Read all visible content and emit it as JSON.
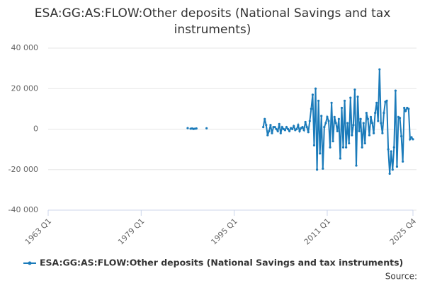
{
  "chart_data": {
    "type": "line",
    "title": "ESA:GG:AS:FLOW:Other deposits (National Savings and tax instruments)",
    "source": "Source:",
    "xlim": [
      "1963 Q1",
      "2025 Q4"
    ],
    "xticks": [
      "1963 Q1",
      "1979 Q1",
      "1995 Q1",
      "2011 Q1",
      "2025 Q4"
    ],
    "ylim": [
      -40000,
      40000
    ],
    "yticks": [
      {
        "value": -40000,
        "label": "-40 000"
      },
      {
        "value": -20000,
        "label": "-20 000"
      },
      0,
      {
        "value": 20000,
        "label": "20 000"
      },
      {
        "value": 40000,
        "label": "40 000"
      }
    ],
    "grid": true,
    "x": [
      "1987 Q1",
      "1987 Q2",
      "1987 Q3",
      "1987 Q4",
      "1988 Q1",
      "1988 Q2",
      "1988 Q3",
      "1988 Q4",
      "1989 Q1",
      "1989 Q2",
      "1989 Q3",
      "1989 Q4",
      "1990 Q1",
      "1990 Q2",
      "1990 Q3",
      "1990 Q4",
      "1991 Q1",
      "1991 Q2",
      "1991 Q3",
      "1991 Q4",
      "1992 Q1",
      "1992 Q2",
      "1992 Q3",
      "1992 Q4",
      "1993 Q1",
      "1993 Q2",
      "1993 Q3",
      "1993 Q4",
      "1994 Q1",
      "1994 Q2",
      "1994 Q3",
      "1994 Q4",
      "1995 Q1",
      "1995 Q2",
      "1995 Q3",
      "1995 Q4",
      "1996 Q1",
      "1996 Q2",
      "1996 Q3",
      "1996 Q4",
      "1997 Q1",
      "1997 Q2",
      "1997 Q3",
      "1997 Q4",
      "1998 Q1",
      "1998 Q2",
      "1998 Q3",
      "1998 Q4",
      "1999 Q1",
      "1999 Q2",
      "1999 Q3",
      "1999 Q4",
      "2000 Q1",
      "2000 Q2",
      "2000 Q3",
      "2000 Q4",
      "2001 Q1",
      "2001 Q2",
      "2001 Q3",
      "2001 Q4",
      "2002 Q1",
      "2002 Q2",
      "2002 Q3",
      "2002 Q4",
      "2003 Q1",
      "2003 Q2",
      "2003 Q3",
      "2003 Q4",
      "2004 Q1",
      "2004 Q2",
      "2004 Q3",
      "2004 Q4",
      "2005 Q1",
      "2005 Q2",
      "2005 Q3",
      "2005 Q4",
      "2006 Q1",
      "2006 Q2",
      "2006 Q3",
      "2006 Q4",
      "2007 Q1",
      "2007 Q2",
      "2007 Q3",
      "2007 Q4",
      "2008 Q1",
      "2008 Q2",
      "2008 Q3",
      "2008 Q4",
      "2009 Q1",
      "2009 Q2",
      "2009 Q3",
      "2009 Q4",
      "2010 Q1",
      "2010 Q2",
      "2010 Q3",
      "2010 Q4",
      "2011 Q1",
      "2011 Q2",
      "2011 Q3",
      "2011 Q4",
      "2012 Q1",
      "2012 Q2",
      "2012 Q3",
      "2012 Q4",
      "2013 Q1",
      "2013 Q2",
      "2013 Q3",
      "2013 Q4",
      "2014 Q1",
      "2014 Q2",
      "2014 Q3",
      "2014 Q4",
      "2015 Q1",
      "2015 Q2",
      "2015 Q3",
      "2015 Q4",
      "2016 Q1",
      "2016 Q2",
      "2016 Q3",
      "2016 Q4",
      "2017 Q1",
      "2017 Q2",
      "2017 Q3",
      "2017 Q4",
      "2018 Q1",
      "2018 Q2",
      "2018 Q3",
      "2018 Q4",
      "2019 Q1",
      "2019 Q2",
      "2019 Q3",
      "2019 Q4",
      "2020 Q1",
      "2020 Q2",
      "2020 Q3",
      "2020 Q4",
      "2021 Q1",
      "2021 Q2",
      "2021 Q3",
      "2021 Q4",
      "2022 Q1",
      "2022 Q2",
      "2022 Q3",
      "2022 Q4",
      "2023 Q1",
      "2023 Q2",
      "2023 Q3",
      "2023 Q4",
      "2024 Q1",
      "2024 Q2",
      "2024 Q3",
      "2024 Q4",
      "2025 Q1",
      "2025 Q2",
      "2025 Q3",
      "2025 Q4"
    ],
    "series": [
      {
        "name": "ESA:GG:AS:FLOW:Other deposits (National Savings and tax instruments)",
        "color": "#1b7bba",
        "values": [
          500,
          null,
          200,
          300,
          100,
          200,
          300,
          null,
          null,
          null,
          null,
          null,
          null,
          400,
          null,
          null,
          null,
          null,
          null,
          null,
          null,
          null,
          null,
          null,
          null,
          null,
          null,
          null,
          null,
          null,
          null,
          null,
          null,
          null,
          null,
          null,
          null,
          null,
          null,
          null,
          null,
          null,
          null,
          null,
          null,
          null,
          null,
          null,
          null,
          null,
          null,
          null,
          1000,
          5000,
          2000,
          -3000,
          -1000,
          2000,
          -2000,
          1000,
          1000,
          0,
          -1000,
          2500,
          -2000,
          1000,
          0,
          -500,
          1000,
          0,
          -1000,
          500,
          0,
          1500,
          -500,
          0,
          2000,
          -1000,
          500,
          1000,
          -500,
          3500,
          1000,
          -1500,
          4000,
          10000,
          17000,
          -8000,
          20000,
          -20000,
          14000,
          -12000,
          6500,
          -19500,
          1000,
          3000,
          6000,
          4000,
          -9000,
          13000,
          -6000,
          6000,
          3000,
          -1000,
          5000,
          -14500,
          10500,
          -9000,
          14000,
          -9000,
          3000,
          -7000,
          15500,
          -3000,
          2000,
          19500,
          -18000,
          16000,
          -1000,
          5000,
          -9000,
          3000,
          -7000,
          8000,
          5000,
          -3000,
          6000,
          3000,
          -2000,
          8000,
          13000,
          4000,
          29500,
          3000,
          -2000,
          8000,
          13500,
          14000,
          -10000,
          -22000,
          -11000,
          -20000,
          -9000,
          19000,
          -18500,
          6000,
          5500,
          -3500,
          -16000,
          10500,
          9000,
          10500,
          10000,
          -5000,
          -4000,
          -5000
        ]
      }
    ]
  }
}
